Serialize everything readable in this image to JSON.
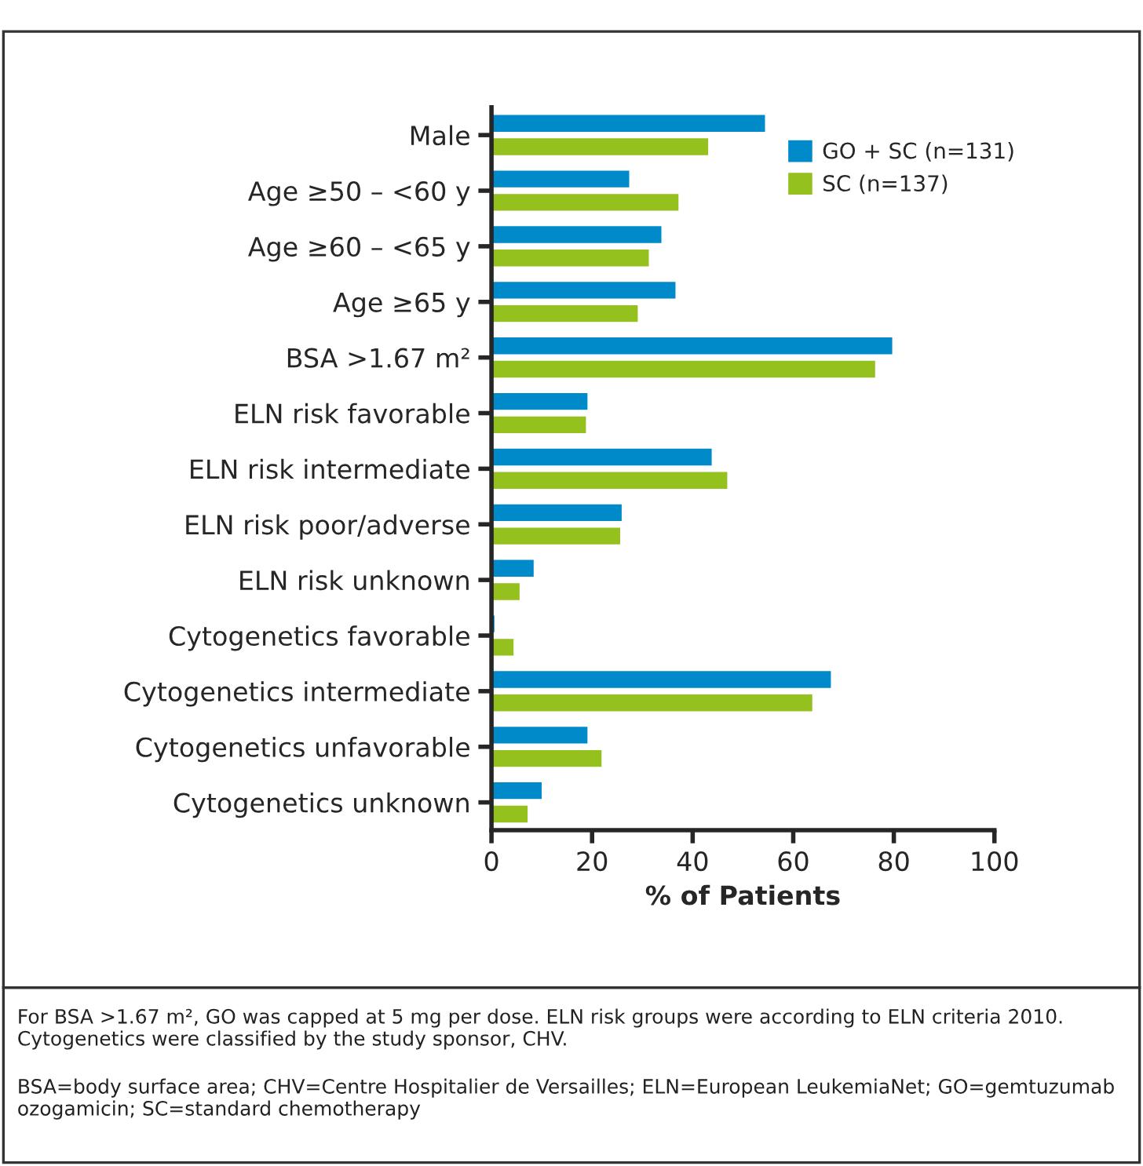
{
  "chart_data": {
    "type": "bar",
    "orientation": "horizontal",
    "xlabel": "% of Patients",
    "categories": [
      "Male",
      "Age ≥50 – <60 y",
      "Age ≥60 – <65 y",
      "Age ≥65 y",
      "BSA >1.67 m²",
      "ELN risk favorable",
      "ELN risk intermediate",
      "ELN risk poor/adverse",
      "ELN risk unknown",
      "Cytogenetics favorable",
      "Cytogenetics intermediate",
      "Cytogenetics unfavorable",
      "Cytogenetics unknown"
    ],
    "series": [
      {
        "name": "GO + SC (n=131)",
        "color": "#008ac9",
        "values": [
          54.6,
          27.6,
          34.0,
          36.8,
          79.9,
          19.3,
          44.0,
          26.1,
          8.6,
          0.8,
          67.7,
          19.3,
          10.2
        ]
      },
      {
        "name": "SC (n=137)",
        "color": "#95c11f",
        "values": [
          43.3,
          37.4,
          31.5,
          29.3,
          76.5,
          19.0,
          47.1,
          25.8,
          5.8,
          4.6,
          64.0,
          22.1,
          7.4
        ]
      }
    ],
    "xlim": [
      0,
      100
    ],
    "xticks": [
      0,
      20,
      40,
      60,
      80,
      100
    ],
    "grid": false,
    "legend": "top right",
    "annotations": [
      "For BSA >1.67 m², GO was capped at 5 mg per dose. ELN risk groups were according to ELN criteria 2010. Cytogenetics were classified by the study sponsor, CHV.",
      "BSA=body surface area; CHV=Centre Hospitalier de Versailles; ELN=European LeukemiaNet; GO=gemtuzumab ozogamicin; SC=standard chemotherapy"
    ]
  }
}
